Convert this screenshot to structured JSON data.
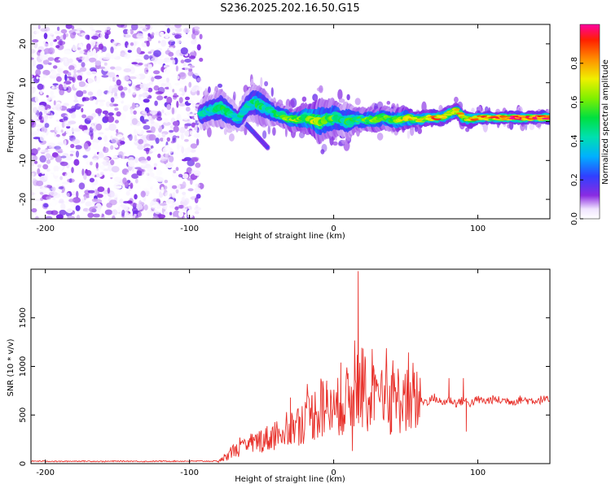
{
  "title": "S236.2025.202.16.50.G15",
  "chart_data": [
    {
      "type": "heatmap",
      "xlabel": "Height of straight line (km)",
      "ylabel": "Frequency (Hz)",
      "xlim": [
        -210,
        150
      ],
      "ylim": [
        -25,
        25
      ],
      "xticks": [
        -200,
        -100,
        0,
        100
      ],
      "yticks": [
        -20,
        -10,
        0,
        10,
        20
      ],
      "colorbar": {
        "label": "Normalized spectral amplitude",
        "range": [
          0,
          1
        ],
        "ticks": [
          0,
          0.2,
          0.4,
          0.6,
          0.8
        ]
      },
      "noise_region_x": [
        -210,
        -92
      ],
      "ridge": {
        "x": [
          -92,
          -85,
          -78,
          -72,
          -66,
          -60,
          -55,
          -50,
          -45,
          -40,
          -35,
          -30,
          -25,
          -20,
          -15,
          -10,
          -5,
          0,
          5,
          10,
          15,
          20,
          25,
          30,
          35,
          40,
          45,
          50,
          55,
          60,
          65,
          70,
          75,
          80,
          85,
          90,
          95,
          100,
          110,
          120,
          130,
          140,
          150
        ],
        "frequency_hz": [
          2,
          3,
          3.5,
          2,
          0.5,
          4,
          5,
          4,
          3,
          2,
          1.5,
          0.5,
          0.5,
          1,
          0.5,
          0,
          0.5,
          1,
          0.5,
          0,
          0.5,
          0.5,
          0.5,
          0.5,
          1,
          0.5,
          0.5,
          1,
          0.5,
          0.5,
          1,
          1,
          1,
          2,
          3,
          1,
          0.5,
          1,
          1,
          1,
          1,
          1,
          1
        ],
        "amplitude": [
          0.4,
          0.45,
          0.5,
          0.45,
          0.4,
          0.45,
          0.45,
          0.5,
          0.45,
          0.5,
          0.55,
          0.6,
          0.65,
          0.6,
          0.7,
          0.6,
          0.55,
          0.55,
          0.5,
          0.5,
          0.55,
          0.5,
          0.6,
          0.65,
          0.6,
          0.55,
          0.65,
          0.7,
          0.75,
          0.7,
          0.8,
          0.85,
          0.8,
          0.75,
          0.7,
          0.75,
          0.8,
          0.85,
          0.85,
          0.9,
          0.9,
          0.9,
          0.9
        ],
        "spread_hz": [
          4,
          4,
          5,
          4,
          3,
          4,
          5,
          5,
          4,
          3,
          3,
          3,
          3,
          4,
          4,
          6,
          5,
          5,
          4,
          5,
          3,
          3,
          3,
          3,
          3,
          3,
          3,
          3,
          2,
          2,
          2,
          2,
          2,
          2,
          2,
          2,
          2,
          1.5,
          1.5,
          1.5,
          1.5,
          1.5,
          1.5
        ]
      },
      "diagonal_streak": {
        "x": [
          -75,
          -70,
          -65,
          -60,
          -55,
          -50,
          -45
        ],
        "frequency_hz": [
          6,
          4,
          1,
          -1,
          -3,
          -5,
          -7
        ],
        "amplitude": [
          0.3,
          0.3,
          0.28,
          0.25,
          0.22,
          0.2,
          0.18
        ]
      }
    },
    {
      "type": "line",
      "xlabel": "Height of straight line (km)",
      "ylabel": "SNR (10 * v/v)",
      "xlim": [
        -210,
        150
      ],
      "ylim": [
        0,
        2000
      ],
      "xticks": [
        -200,
        -100,
        0,
        100
      ],
      "yticks": [
        0,
        500,
        1000,
        1500
      ],
      "series": [
        {
          "color": "#e8302a",
          "x": [
            -210,
            -200,
            -190,
            -180,
            -170,
            -160,
            -150,
            -140,
            -130,
            -120,
            -110,
            -100,
            -90,
            -80,
            -75,
            -70,
            -65,
            -60,
            -55,
            -50,
            -45,
            -40,
            -35,
            -30,
            -25,
            -20,
            -15,
            -10,
            -5,
            0,
            5,
            10,
            15,
            20,
            25,
            30,
            35,
            40,
            45,
            50,
            55,
            60,
            65,
            70,
            75,
            80,
            85,
            90,
            95,
            100,
            105,
            110,
            115,
            120,
            125,
            130,
            135,
            140,
            145,
            150
          ],
          "values": [
            25,
            25,
            22,
            25,
            25,
            22,
            25,
            25,
            22,
            25,
            25,
            25,
            25,
            25,
            60,
            130,
            150,
            170,
            210,
            250,
            260,
            300,
            340,
            360,
            400,
            450,
            500,
            550,
            580,
            520,
            620,
            650,
            720,
            780,
            640,
            600,
            640,
            620,
            680,
            620,
            700,
            640,
            640,
            680,
            620,
            660,
            620,
            650,
            620,
            660,
            640,
            660,
            650,
            650,
            640,
            660,
            650,
            650,
            660,
            650
          ],
          "spikes": [
            {
              "x": -30,
              "y": 680
            },
            {
              "x": -15,
              "y": 700
            },
            {
              "x": -5,
              "y": 800
            },
            {
              "x": 5,
              "y": 1040
            },
            {
              "x": 10,
              "y": 930
            },
            {
              "x": 17,
              "y": 1980
            },
            {
              "x": 22,
              "y": 1070
            },
            {
              "x": 28,
              "y": 960
            },
            {
              "x": 40,
              "y": 910
            },
            {
              "x": 56,
              "y": 820
            },
            {
              "x": 80,
              "y": 880
            },
            {
              "x": 90,
              "y": 880
            }
          ],
          "dips": [
            {
              "x": 13,
              "y": 130
            },
            {
              "x": 92,
              "y": 330
            }
          ]
        }
      ]
    }
  ]
}
